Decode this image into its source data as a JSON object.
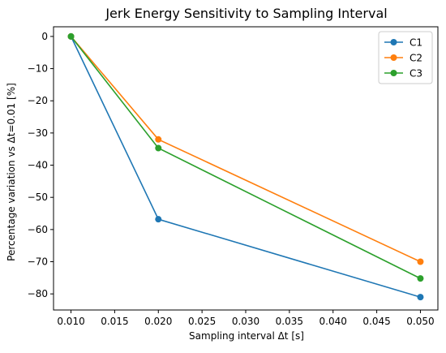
{
  "chart_data": {
    "type": "line",
    "title": "Jerk Energy Sensitivity to Sampling Interval",
    "xlabel": "Sampling interval Δt [s]",
    "ylabel": "Percentage variation vs Δt=0.01 [%]",
    "x": [
      0.01,
      0.02,
      0.05
    ],
    "xlim": [
      0.008,
      0.052
    ],
    "ylim": [
      -85,
      3
    ],
    "xticks": [
      0.01,
      0.015,
      0.02,
      0.025,
      0.03,
      0.035,
      0.04,
      0.045,
      0.05
    ],
    "xtick_labels": [
      "0.010",
      "0.015",
      "0.020",
      "0.025",
      "0.030",
      "0.035",
      "0.040",
      "0.045",
      "0.050"
    ],
    "yticks": [
      0,
      -10,
      -20,
      -30,
      -40,
      -50,
      -60,
      -70,
      -80
    ],
    "ytick_labels": [
      "0",
      "−10",
      "−20",
      "−30",
      "−40",
      "−50",
      "−60",
      "−70",
      "−80"
    ],
    "grid": false,
    "legend_position": "top-right",
    "series": [
      {
        "name": "C1",
        "color": "#1f77b4",
        "values": [
          0,
          -56.8,
          -81.0
        ]
      },
      {
        "name": "C2",
        "color": "#ff7f0e",
        "values": [
          0,
          -32.0,
          -70.0
        ]
      },
      {
        "name": "C3",
        "color": "#2ca02c",
        "values": [
          0,
          -34.7,
          -75.2
        ]
      }
    ]
  }
}
